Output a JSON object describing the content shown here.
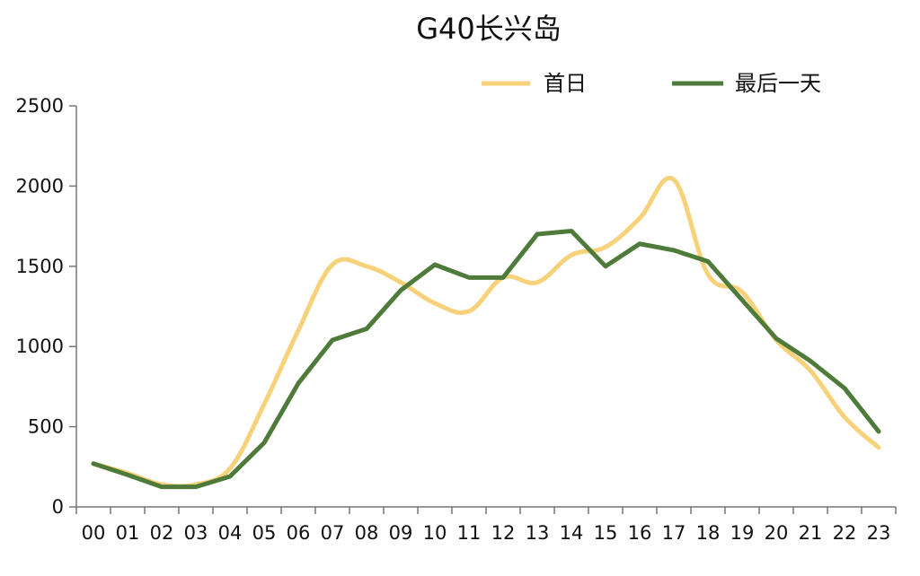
{
  "chart_data": {
    "type": "line",
    "title": "G40长兴岛",
    "xlabel": "",
    "ylabel": "",
    "categories": [
      "00",
      "01",
      "02",
      "03",
      "04",
      "05",
      "06",
      "07",
      "08",
      "09",
      "10",
      "11",
      "12",
      "13",
      "14",
      "15",
      "16",
      "17",
      "18",
      "19",
      "20",
      "21",
      "22",
      "23"
    ],
    "ylim": [
      0,
      2500
    ],
    "yticks": [
      0,
      500,
      1000,
      1500,
      2000,
      2500
    ],
    "grid": false,
    "legend_position": "top-right",
    "series": [
      {
        "name": "首日",
        "color": "#F7D27A",
        "smooth": true,
        "values": [
          270,
          210,
          140,
          140,
          240,
          640,
          1100,
          1510,
          1500,
          1400,
          1270,
          1220,
          1430,
          1400,
          1570,
          1620,
          1800,
          2040,
          1450,
          1340,
          1040,
          850,
          560,
          370
        ]
      },
      {
        "name": "最后一天",
        "color": "#4E7A3A",
        "smooth": false,
        "values": [
          270,
          200,
          125,
          125,
          190,
          400,
          770,
          1040,
          1110,
          1350,
          1510,
          1430,
          1430,
          1700,
          1720,
          1500,
          1640,
          1600,
          1530,
          1290,
          1050,
          910,
          740,
          470
        ]
      }
    ]
  }
}
